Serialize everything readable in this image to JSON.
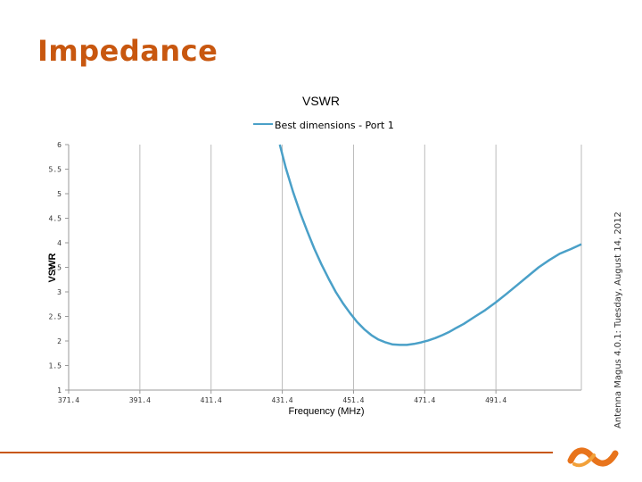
{
  "slide": {
    "title": "Impedance",
    "accent_color": "#c8570f",
    "footer_line_color": "#c8570f"
  },
  "watermark": {
    "brand": "Antenna Magus 4.0.1: ",
    "date": "Tuesday, August 14, 2012"
  },
  "logo": {
    "icon": "antenna-magus-logo-icon",
    "colors": [
      "#e8741c",
      "#f2a13a"
    ]
  },
  "chart_data": {
    "type": "line",
    "title": "VSWR",
    "xlabel": "Frequency (MHz)",
    "ylabel": "VSWR",
    "xlim": [
      371.4,
      515.4
    ],
    "ylim": [
      1,
      6
    ],
    "xticks": [
      371.4,
      391.4,
      411.4,
      431.4,
      451.4,
      471.4,
      491.4
    ],
    "xtick_labels": [
      "371.4",
      "391.4",
      "411.4",
      "431.4",
      "451.4",
      "471.4",
      "491.4"
    ],
    "yticks": [
      1,
      1.5,
      2,
      2.5,
      3,
      3.5,
      4,
      4.5,
      5,
      5.5,
      6
    ],
    "ytick_labels": [
      "1",
      "1.5",
      "2",
      "2.5",
      "3",
      "3.5",
      "4",
      "4.5",
      "5",
      "5.5",
      "6"
    ],
    "grid": "vertical",
    "legend": "top-center",
    "series": [
      {
        "name": "Best dimensions - Port 1",
        "color": "#4aa0c8",
        "x": [
          430.7,
          432.4,
          434.4,
          436.4,
          438.4,
          440.4,
          442.4,
          444.4,
          446.4,
          448.4,
          450.4,
          452.4,
          454.4,
          456.4,
          458.4,
          460.4,
          462.4,
          464.4,
          466.4,
          468.4,
          470.4,
          472.4,
          474.4,
          476.4,
          478.4,
          480.4,
          482.4,
          485.4,
          488.4,
          491.4,
          494.4,
          497.4,
          500.4,
          503.4,
          506.4,
          509.4,
          512.4,
          515.4
        ],
        "y": [
          6.0,
          5.52,
          5.04,
          4.62,
          4.24,
          3.88,
          3.56,
          3.27,
          3.0,
          2.77,
          2.57,
          2.39,
          2.24,
          2.12,
          2.03,
          1.97,
          1.93,
          1.92,
          1.92,
          1.94,
          1.97,
          2.01,
          2.06,
          2.12,
          2.19,
          2.27,
          2.35,
          2.49,
          2.63,
          2.79,
          2.96,
          3.14,
          3.32,
          3.5,
          3.65,
          3.78,
          3.87,
          3.97
        ]
      }
    ]
  }
}
